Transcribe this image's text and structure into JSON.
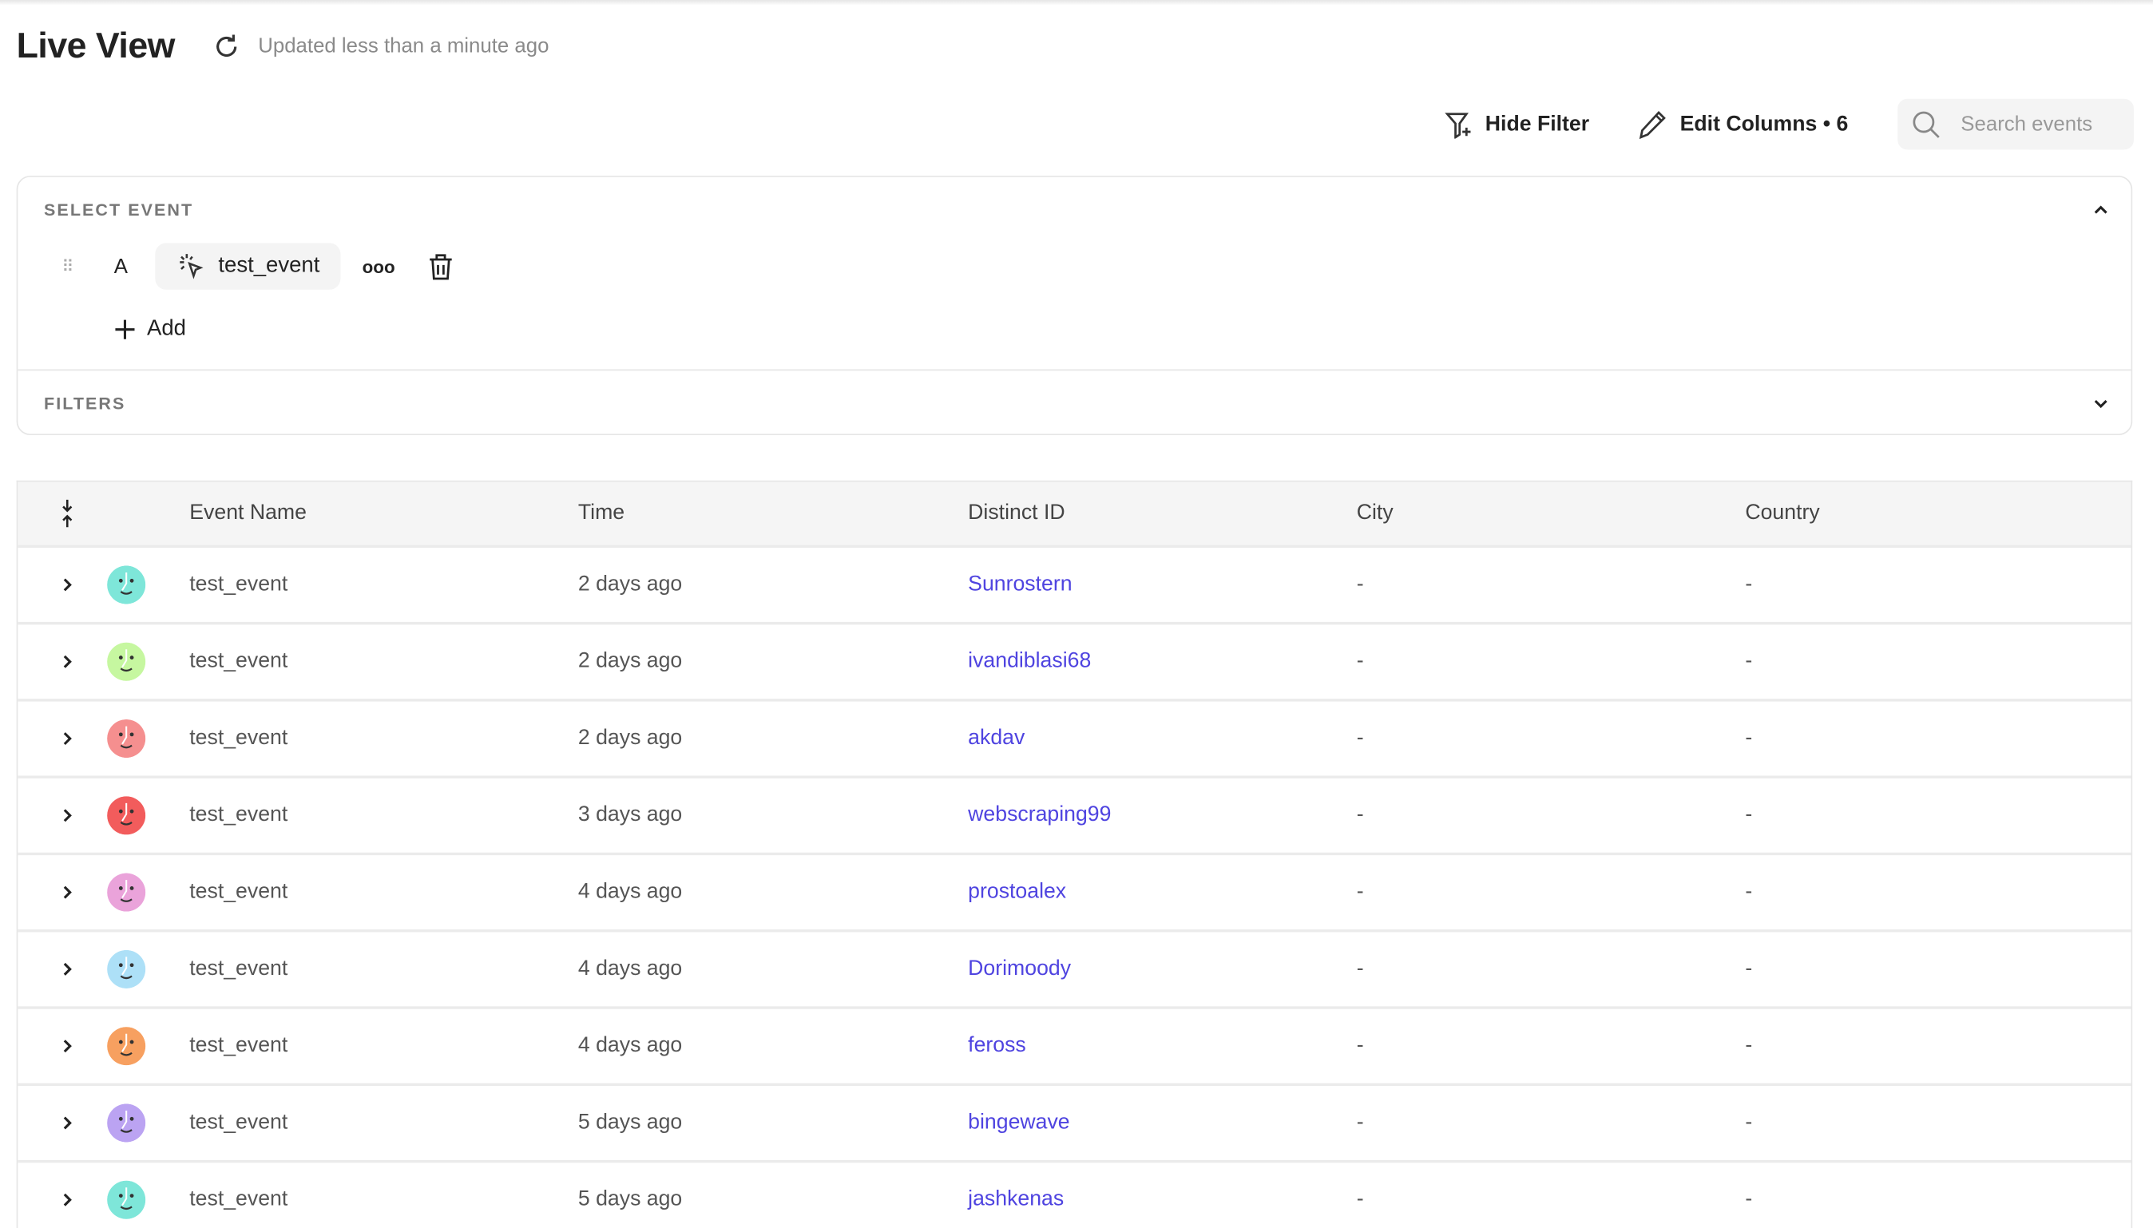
{
  "header": {
    "title": "Live View",
    "updated": "Updated less than a minute ago"
  },
  "toolbar": {
    "hide_filter": "Hide Filter",
    "edit_columns": "Edit Columns • 6",
    "search_placeholder": "Search events"
  },
  "select_event": {
    "label": "SELECT EVENT",
    "letter": "A",
    "event": "test_event",
    "more": "ooo",
    "add": "Add"
  },
  "filters": {
    "label": "FILTERS"
  },
  "table": {
    "columns": [
      "Event Name",
      "Time",
      "Distinct ID",
      "City",
      "Country"
    ],
    "rows": [
      {
        "event": "test_event",
        "time": "2 days ago",
        "distinct_id": "Sunrostern",
        "city": "-",
        "country": "-",
        "avatar_color": "#7ee6d9"
      },
      {
        "event": "test_event",
        "time": "2 days ago",
        "distinct_id": "ivandiblasi68",
        "city": "-",
        "country": "-",
        "avatar_color": "#c6f7a0"
      },
      {
        "event": "test_event",
        "time": "2 days ago",
        "distinct_id": "akdav",
        "city": "-",
        "country": "-",
        "avatar_color": "#f58f8f"
      },
      {
        "event": "test_event",
        "time": "3 days ago",
        "distinct_id": "webscraping99",
        "city": "-",
        "country": "-",
        "avatar_color": "#f25c5c"
      },
      {
        "event": "test_event",
        "time": "4 days ago",
        "distinct_id": "prostoalex",
        "city": "-",
        "country": "-",
        "avatar_color": "#eaa3da"
      },
      {
        "event": "test_event",
        "time": "4 days ago",
        "distinct_id": "Dorimoody",
        "city": "-",
        "country": "-",
        "avatar_color": "#ade0f7"
      },
      {
        "event": "test_event",
        "time": "4 days ago",
        "distinct_id": "feross",
        "city": "-",
        "country": "-",
        "avatar_color": "#f7a060"
      },
      {
        "event": "test_event",
        "time": "5 days ago",
        "distinct_id": "bingewave",
        "city": "-",
        "country": "-",
        "avatar_color": "#bba3f2"
      },
      {
        "event": "test_event",
        "time": "5 days ago",
        "distinct_id": "jashkenas",
        "city": "-",
        "country": "-",
        "avatar_color": "#7ee6d9"
      }
    ]
  }
}
